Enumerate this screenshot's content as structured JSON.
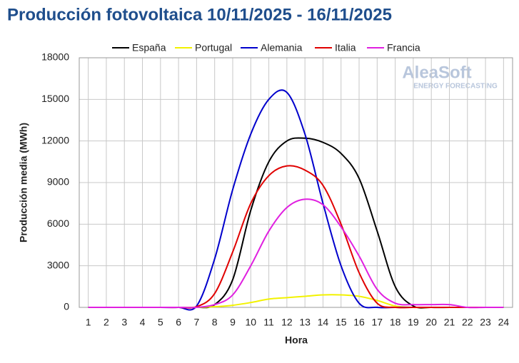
{
  "chart_data": {
    "type": "line",
    "title": "Producción fotovoltaica 10/11/2025 - 16/11/2025",
    "xlabel": "Hora",
    "ylabel": "Producción media (MWh)",
    "watermark": {
      "brand": "AleaSoft",
      "tagline": "ENERGY FORECASTING"
    },
    "x": [
      1,
      2,
      3,
      4,
      5,
      6,
      7,
      8,
      9,
      10,
      11,
      12,
      13,
      14,
      15,
      16,
      17,
      18,
      19,
      20,
      21,
      22,
      23,
      24
    ],
    "xlim": [
      0.5,
      24.5
    ],
    "xticks": [
      1,
      2,
      3,
      4,
      5,
      6,
      7,
      8,
      9,
      10,
      11,
      12,
      13,
      14,
      15,
      16,
      17,
      18,
      19,
      20,
      21,
      22,
      23,
      24
    ],
    "ylim": [
      0,
      18000
    ],
    "yticks": [
      0,
      3000,
      6000,
      9000,
      12000,
      15000,
      18000
    ],
    "grid": true,
    "legend": "top",
    "series": [
      {
        "name": "España",
        "color": "#000000",
        "values": [
          0,
          0,
          0,
          0,
          0,
          0,
          0,
          200,
          2000,
          7000,
          10500,
          12000,
          12200,
          11900,
          11100,
          9300,
          5500,
          1500,
          100,
          0,
          0,
          0,
          0,
          0
        ]
      },
      {
        "name": "Portugal",
        "color": "#f2f200",
        "values": [
          0,
          0,
          0,
          0,
          0,
          0,
          0,
          50,
          150,
          350,
          600,
          700,
          800,
          900,
          900,
          800,
          500,
          100,
          0,
          0,
          0,
          0,
          0,
          0
        ]
      },
      {
        "name": "Alemania",
        "color": "#0000cc",
        "values": [
          0,
          0,
          0,
          0,
          0,
          0,
          100,
          3500,
          8500,
          12500,
          15000,
          15500,
          12500,
          7500,
          3000,
          300,
          0,
          0,
          0,
          0,
          0,
          0,
          0,
          0
        ]
      },
      {
        "name": "Italia",
        "color": "#e00000",
        "values": [
          0,
          0,
          0,
          0,
          0,
          0,
          50,
          1000,
          4000,
          7500,
          9500,
          10200,
          9900,
          8800,
          6000,
          2500,
          300,
          0,
          0,
          0,
          0,
          0,
          0,
          0
        ]
      },
      {
        "name": "Francia",
        "color": "#e020e0",
        "values": [
          0,
          0,
          0,
          0,
          0,
          0,
          0,
          200,
          900,
          3000,
          5500,
          7200,
          7800,
          7400,
          5800,
          3700,
          1300,
          300,
          200,
          200,
          200,
          0,
          0,
          0
        ]
      }
    ]
  }
}
